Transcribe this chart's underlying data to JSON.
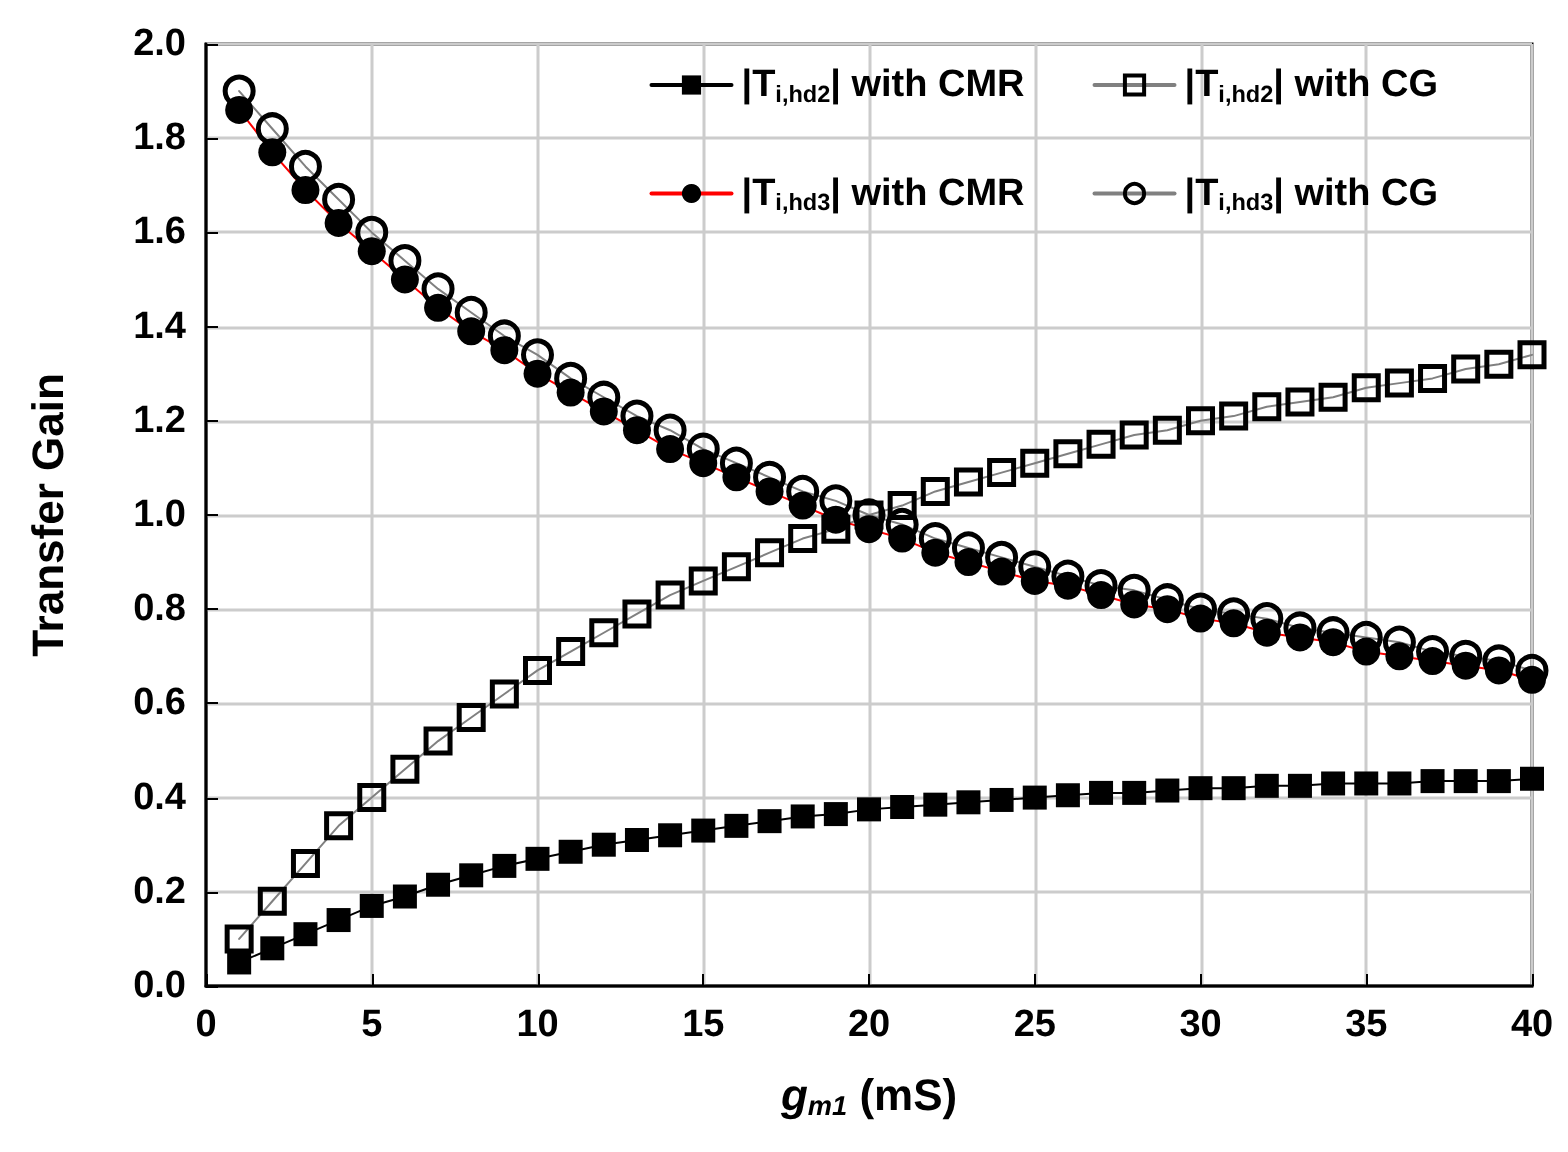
{
  "chart_data": {
    "type": "line",
    "xlabel": "g$_{m1}$ (mS)",
    "ylabel": "Transfer Gain",
    "x": [
      1,
      2,
      3,
      4,
      5,
      6,
      7,
      8,
      9,
      10,
      11,
      12,
      13,
      14,
      15,
      16,
      17,
      18,
      19,
      20,
      21,
      22,
      23,
      24,
      25,
      26,
      27,
      28,
      29,
      30,
      31,
      32,
      33,
      34,
      35,
      36,
      37,
      38,
      39,
      40
    ],
    "series": [
      {
        "name": "|T$_{i,hd2}$| with CMR",
        "color": "#000000",
        "marker": "square",
        "values": [
          0.05,
          0.08,
          0.11,
          0.14,
          0.17,
          0.19,
          0.215,
          0.235,
          0.255,
          0.27,
          0.285,
          0.3,
          0.31,
          0.32,
          0.33,
          0.34,
          0.35,
          0.36,
          0.365,
          0.375,
          0.38,
          0.385,
          0.39,
          0.395,
          0.4,
          0.405,
          0.41,
          0.41,
          0.415,
          0.42,
          0.42,
          0.425,
          0.425,
          0.43,
          0.43,
          0.43,
          0.435,
          0.435,
          0.435,
          0.44
        ]
      },
      {
        "name": "|T$_{i,hd2}$| with CG",
        "color": "#808080",
        "marker": "square",
        "values": [
          0.1,
          0.18,
          0.26,
          0.34,
          0.4,
          0.46,
          0.52,
          0.57,
          0.62,
          0.67,
          0.71,
          0.75,
          0.79,
          0.83,
          0.86,
          0.89,
          0.92,
          0.95,
          0.97,
          1.0,
          1.02,
          1.05,
          1.07,
          1.09,
          1.11,
          1.13,
          1.15,
          1.17,
          1.18,
          1.2,
          1.21,
          1.23,
          1.24,
          1.25,
          1.27,
          1.28,
          1.29,
          1.31,
          1.32,
          1.34
        ]
      },
      {
        "name": "|T$_{i,hd3}$| with CMR",
        "color": "#ff0000",
        "marker": "circle",
        "values": [
          1.86,
          1.77,
          1.69,
          1.62,
          1.56,
          1.5,
          1.44,
          1.39,
          1.35,
          1.3,
          1.26,
          1.22,
          1.18,
          1.14,
          1.11,
          1.08,
          1.05,
          1.02,
          0.99,
          0.97,
          0.95,
          0.92,
          0.9,
          0.88,
          0.86,
          0.85,
          0.83,
          0.81,
          0.8,
          0.78,
          0.77,
          0.75,
          0.74,
          0.73,
          0.71,
          0.7,
          0.69,
          0.68,
          0.67,
          0.65
        ]
      },
      {
        "name": "|T$_{i,hd3}$| with CG",
        "color": "#808080",
        "marker": "circle",
        "values": [
          1.9,
          1.82,
          1.74,
          1.67,
          1.6,
          1.54,
          1.48,
          1.43,
          1.38,
          1.34,
          1.29,
          1.25,
          1.21,
          1.18,
          1.14,
          1.11,
          1.08,
          1.05,
          1.03,
          1.0,
          0.98,
          0.95,
          0.93,
          0.91,
          0.89,
          0.87,
          0.85,
          0.84,
          0.82,
          0.8,
          0.79,
          0.78,
          0.76,
          0.75,
          0.74,
          0.73,
          0.71,
          0.7,
          0.69,
          0.67
        ]
      }
    ],
    "xlim": [
      0,
      40
    ],
    "xticks": [
      0,
      5,
      10,
      15,
      20,
      25,
      30,
      35,
      40
    ],
    "ylim": [
      0,
      2
    ],
    "yticks": [
      {
        "value": 0,
        "label": "0.0"
      },
      {
        "value": 0.2,
        "label": "0.2"
      },
      {
        "value": 0.4,
        "label": "0.4"
      },
      {
        "value": 0.6,
        "label": "0.6"
      },
      {
        "value": 0.8,
        "label": "0.8"
      },
      {
        "value": 1,
        "label": "1.0"
      },
      {
        "value": 1.2,
        "label": "1.2"
      },
      {
        "value": 1.4,
        "label": "1.4"
      },
      {
        "value": 1.6,
        "label": "1.6"
      },
      {
        "value": 1.8,
        "label": "1.8"
      },
      {
        "value": 2,
        "label": "2.0"
      }
    ],
    "grid": true,
    "legend": "top right",
    "line_style": "solid"
  }
}
